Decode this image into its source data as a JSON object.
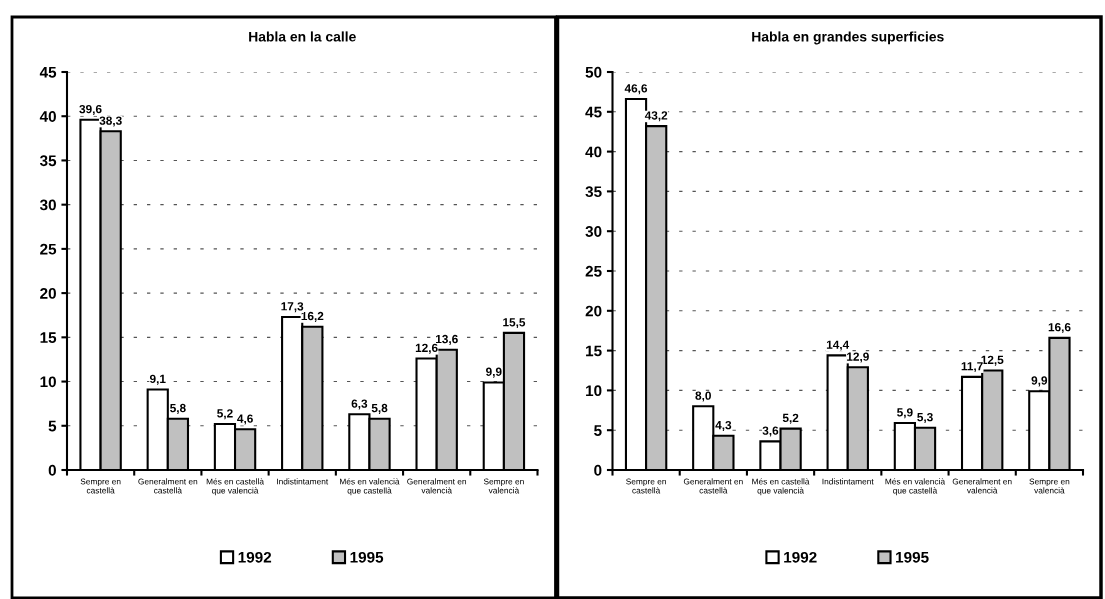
{
  "chart_data": [
    {
      "type": "bar",
      "title": "Habla en la calle",
      "categories": [
        "Sempre en\ncastellà",
        "Generalment en\ncastellà",
        "Més en castellà\nque valencià",
        "Indistintament",
        "Més en valencià\nque castellà",
        "Generalment en\nvalencià",
        "Sempre en\nvalencià"
      ],
      "series": [
        {
          "name": "1992",
          "color": "#ffffff",
          "values": [
            39.6,
            9.1,
            5.2,
            17.3,
            6.3,
            12.6,
            9.9
          ],
          "value_labels": [
            "39,6",
            "9,1",
            "5,2",
            "17,3",
            "6,3",
            "12,6",
            "9,9"
          ]
        },
        {
          "name": "1995",
          "color": "#c0c0c0",
          "values": [
            38.3,
            5.8,
            4.6,
            16.2,
            5.8,
            13.6,
            15.5
          ],
          "value_labels": [
            "38,3",
            "5,8",
            "4,6",
            "16,2",
            "5,8",
            "13,6",
            "15,5"
          ]
        }
      ],
      "ylim": [
        0,
        45
      ],
      "yticks": [
        0,
        5,
        10,
        15,
        20,
        25,
        30,
        35,
        40,
        45
      ],
      "grid": "y",
      "legend": "bottom"
    },
    {
      "type": "bar",
      "title": "Habla en grandes superficies",
      "categories": [
        "Sempre en\ncastellà",
        "Generalment en\ncastellà",
        "Més en castellà\nque valencià",
        "Indistintament",
        "Més en valencià\nque castellà",
        "Generalment en\nvalencià",
        "Sempre en\nvalencià"
      ],
      "series": [
        {
          "name": "1992",
          "color": "#ffffff",
          "values": [
            46.6,
            8.0,
            3.6,
            14.4,
            5.9,
            11.7,
            9.9
          ],
          "value_labels": [
            "46,6",
            "8,0",
            "3,6",
            "14,4",
            "5,9",
            "11,7",
            "9,9"
          ]
        },
        {
          "name": "1995",
          "color": "#c0c0c0",
          "values": [
            43.2,
            4.3,
            5.2,
            12.9,
            5.3,
            12.5,
            16.6
          ],
          "value_labels": [
            "43,2",
            "4,3",
            "5,2",
            "12,9",
            "5,3",
            "12,5",
            "16,6"
          ]
        }
      ],
      "ylim": [
        0,
        50
      ],
      "yticks": [
        0,
        5,
        10,
        15,
        20,
        25,
        30,
        35,
        40,
        45,
        50
      ],
      "grid": "y",
      "legend": "bottom"
    }
  ]
}
